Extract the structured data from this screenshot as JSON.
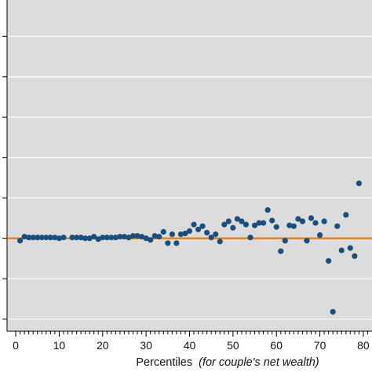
{
  "chart_data": {
    "type": "scatter",
    "title": "",
    "xlabel": {
      "main": "Percentiles",
      "qualifier": "(for couple's net wealth)"
    },
    "ylabel": "",
    "xlim": [
      -2,
      82
    ],
    "ylim": [
      -0.115,
      0.295
    ],
    "grid": true,
    "x_ticks": [
      0,
      10,
      20,
      30,
      40,
      50,
      60,
      70,
      80
    ],
    "y_gridlines": [
      -0.1,
      -0.05,
      0.05,
      0.1,
      0.15,
      0.2,
      0.25
    ],
    "reference_line": {
      "y": 0,
      "color": "#E8780F"
    },
    "series": [
      {
        "color": "#1A4E7C",
        "points": [
          [
            1,
            -0.003
          ],
          [
            2,
            0.002
          ],
          [
            3,
            0.001
          ],
          [
            4,
            0.001
          ],
          [
            5,
            0.001
          ],
          [
            6,
            0.001
          ],
          [
            7,
            0.001
          ],
          [
            8,
            0.001
          ],
          [
            9,
            0.001
          ],
          [
            10,
            0.0
          ],
          [
            11,
            0.001
          ],
          [
            13,
            0.001
          ],
          [
            14,
            0.001
          ],
          [
            15,
            0.001
          ],
          [
            16,
            0.0
          ],
          [
            17,
            0.0
          ],
          [
            18,
            0.002
          ],
          [
            19,
            -0.001
          ],
          [
            20,
            0.001
          ],
          [
            21,
            0.001
          ],
          [
            22,
            0.001
          ],
          [
            23,
            0.001
          ],
          [
            24,
            0.002
          ],
          [
            25,
            0.002
          ],
          [
            26,
            0.001
          ],
          [
            27,
            0.003
          ],
          [
            28,
            0.003
          ],
          [
            29,
            0.002
          ],
          [
            30,
            0.0
          ],
          [
            31,
            -0.002
          ],
          [
            32,
            0.003
          ],
          [
            33,
            0.002
          ],
          [
            34,
            0.008
          ],
          [
            35,
            -0.006
          ],
          [
            36,
            0.005
          ],
          [
            37,
            -0.006
          ],
          [
            38,
            0.005
          ],
          [
            39,
            0.006
          ],
          [
            40,
            0.009
          ],
          [
            41,
            0.017
          ],
          [
            42,
            0.011
          ],
          [
            43,
            0.015
          ],
          [
            44,
            0.007
          ],
          [
            45,
            0.001
          ],
          [
            46,
            0.005
          ],
          [
            47,
            -0.004
          ],
          [
            48,
            0.017
          ],
          [
            49,
            0.021
          ],
          [
            50,
            0.013
          ],
          [
            51,
            0.024
          ],
          [
            52,
            0.021
          ],
          [
            53,
            0.017
          ],
          [
            54,
            0.001
          ],
          [
            55,
            0.016
          ],
          [
            56,
            0.019
          ],
          [
            57,
            0.019
          ],
          [
            58,
            0.035
          ],
          [
            59,
            0.022
          ],
          [
            60,
            0.014
          ],
          [
            61,
            -0.016
          ],
          [
            62,
            -0.003
          ],
          [
            63,
            0.016
          ],
          [
            64,
            0.015
          ],
          [
            65,
            0.024
          ],
          [
            66,
            0.021
          ],
          [
            67,
            -0.003
          ],
          [
            68,
            0.025
          ],
          [
            69,
            0.019
          ],
          [
            70,
            0.004
          ],
          [
            71,
            0.021
          ],
          [
            72,
            -0.028
          ],
          [
            73,
            -0.091
          ],
          [
            74,
            0.015
          ],
          [
            75,
            -0.015
          ],
          [
            76,
            0.029
          ],
          [
            77,
            -0.012
          ],
          [
            78,
            -0.022
          ],
          [
            79,
            0.068
          ]
        ]
      }
    ]
  }
}
